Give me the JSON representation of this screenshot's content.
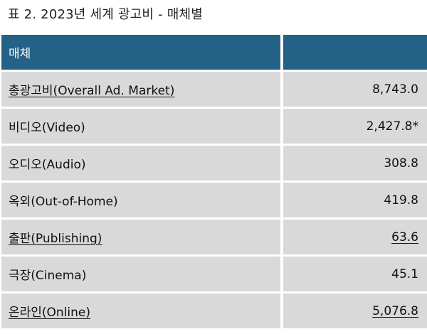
{
  "caption": "표 2. 2023년 세계 광고비 - 매체별",
  "header": {
    "col1": "매체",
    "col2": ""
  },
  "rows": [
    {
      "label": "총광고비(Overall Ad. Market)",
      "value": "8,743.0",
      "label_underlined": true,
      "value_underlined": false
    },
    {
      "label": "비디오(Video)",
      "value": "2,427.8*",
      "label_underlined": false,
      "value_underlined": false
    },
    {
      "label": "오디오(Audio)",
      "value": "308.8",
      "label_underlined": false,
      "value_underlined": false
    },
    {
      "label": "옥외(Out-of-Home)",
      "value": "419.8",
      "label_underlined": false,
      "value_underlined": false
    },
    {
      "label": "출판(Publishing)",
      "value": "63.6",
      "label_underlined": true,
      "value_underlined": true
    },
    {
      "label": "극장(Cinema)",
      "value": "45.1",
      "label_underlined": false,
      "value_underlined": false
    },
    {
      "label": "온라인(Online)",
      "value": "5,076.8",
      "label_underlined": true,
      "value_underlined": true
    }
  ]
}
